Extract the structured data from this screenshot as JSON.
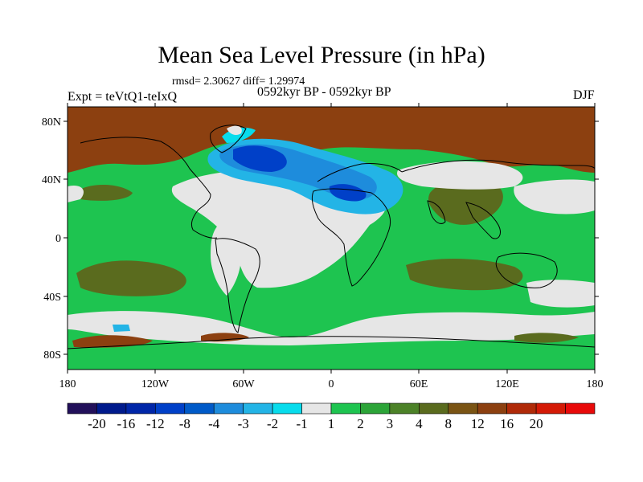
{
  "title": "Mean Sea Level Pressure (in hPa)",
  "stats": "rmsd= 2.30627 diff= 1.29974",
  "experiment": "Expt = teVtQ1-teIxQ",
  "period": "0592kyr BP - 0592kyr BP",
  "season": "DJF",
  "map": {
    "x_ticks": [
      "180",
      "120W",
      "60W",
      "0",
      "60E",
      "120E",
      "180"
    ],
    "y_ticks": [
      "80N",
      "40N",
      "0",
      "40S",
      "80S"
    ]
  },
  "colorbar": {
    "colors": [
      "#22105a",
      "#001a8c",
      "#0026a8",
      "#0040c8",
      "#005ac8",
      "#1e8cdc",
      "#23b4e6",
      "#08dcec",
      "#e6e6e6",
      "#1ec450",
      "#2ca438",
      "#4c8228",
      "#5a6b1e",
      "#7a5414",
      "#8c4010",
      "#b02a08",
      "#d41a06",
      "#e80a0a"
    ],
    "labels": [
      "-20",
      "-16",
      "-12",
      "-8",
      "-4",
      "-3",
      "-2",
      "-1",
      "1",
      "2",
      "3",
      "4",
      "8",
      "12",
      "16",
      "20"
    ]
  },
  "palette": {
    "neutral": "#e6e6e6",
    "brown": "#8c4010",
    "olive": "#5a6b1e",
    "green": "#1ec450",
    "dark_green": "#2ca438",
    "blue_dark": "#0040c8",
    "blue_mid": "#1e8cdc",
    "blue_light": "#23b4e6",
    "cyan": "#08dcec"
  }
}
